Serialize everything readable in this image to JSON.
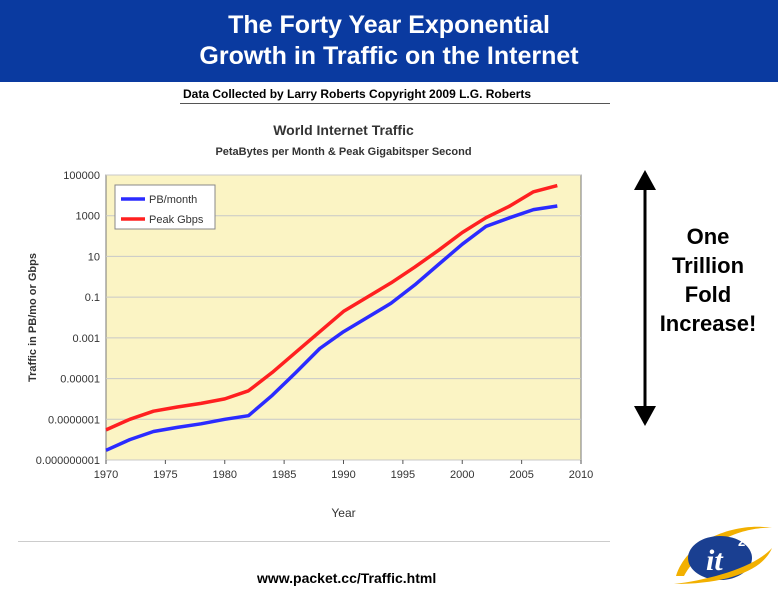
{
  "header": {
    "title_line1": "The Forty Year Exponential",
    "title_line2": "Growth in Traffic on the Internet"
  },
  "credit": "Data Collected by Larry Roberts  Copyright 2009 L.G. Roberts",
  "annotation": {
    "lines": [
      "One",
      "Trillion",
      "Fold",
      "Increase!"
    ]
  },
  "footer": {
    "url": "www.packet.cc/Traffic.html"
  },
  "logo": {
    "text": "it",
    "superscript": "2"
  },
  "colors": {
    "title_bg": "#0a3aa0",
    "plot_bg": "#fbf4c4",
    "pb_series": "#2b2bff",
    "peak_series": "#ff2020"
  },
  "chart_data": {
    "type": "line",
    "title": "World Internet Traffic",
    "subtitle": "PetaBytes per Month & Peak Gigabitsper Second",
    "xlabel": "Year",
    "ylabel": "Traffic in PB/mo or Gbps",
    "y_scale": "log",
    "xlim": [
      1970,
      2010
    ],
    "ylim": [
      1e-09,
      100000
    ],
    "x_ticks": [
      1970,
      1975,
      1980,
      1985,
      1990,
      1995,
      2000,
      2005,
      2010
    ],
    "y_ticks": [
      {
        "value": 100000,
        "label": "100000"
      },
      {
        "value": 1000,
        "label": "1000"
      },
      {
        "value": 10,
        "label": "10"
      },
      {
        "value": 0.1,
        "label": "0.1"
      },
      {
        "value": 0.001,
        "label": "0.001"
      },
      {
        "value": 1e-05,
        "label": "0.00001"
      },
      {
        "value": 1e-07,
        "label": "0.0000001"
      },
      {
        "value": 1e-09,
        "label": "0.000000001"
      }
    ],
    "grid": true,
    "legend_position": "top-left",
    "series": [
      {
        "name": "PB/month",
        "color": "#2b2bff",
        "points": [
          [
            1970,
            3e-09
          ],
          [
            1972,
            1e-08
          ],
          [
            1974,
            2.5e-08
          ],
          [
            1976,
            4e-08
          ],
          [
            1978,
            6e-08
          ],
          [
            1980,
            1e-07
          ],
          [
            1982,
            1.5e-07
          ],
          [
            1984,
            1.5e-06
          ],
          [
            1986,
            2e-05
          ],
          [
            1988,
            0.0003
          ],
          [
            1990,
            0.002
          ],
          [
            1992,
            0.01
          ],
          [
            1994,
            0.05
          ],
          [
            1996,
            0.4
          ],
          [
            1998,
            4
          ],
          [
            2000,
            40
          ],
          [
            2002,
            300
          ],
          [
            2004,
            800
          ],
          [
            2006,
            2000
          ],
          [
            2008,
            3000
          ]
        ]
      },
      {
        "name": "Peak Gbps",
        "color": "#ff2020",
        "points": [
          [
            1970,
            3e-08
          ],
          [
            1972,
            1e-07
          ],
          [
            1974,
            2.5e-07
          ],
          [
            1976,
            4e-07
          ],
          [
            1978,
            6e-07
          ],
          [
            1980,
            1e-06
          ],
          [
            1982,
            2.5e-06
          ],
          [
            1984,
            2e-05
          ],
          [
            1986,
            0.0002
          ],
          [
            1988,
            0.002
          ],
          [
            1990,
            0.02
          ],
          [
            1992,
            0.1
          ],
          [
            1994,
            0.5
          ],
          [
            1996,
            3
          ],
          [
            1998,
            20
          ],
          [
            2000,
            150
          ],
          [
            2002,
            800
          ],
          [
            2004,
            3000
          ],
          [
            2006,
            15000
          ],
          [
            2008,
            30000
          ]
        ]
      }
    ]
  }
}
